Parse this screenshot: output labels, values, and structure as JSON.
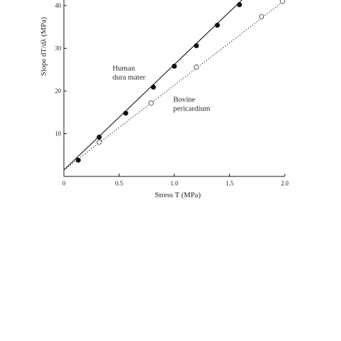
{
  "chart_data": {
    "type": "scatter",
    "xlabel": "Stress T (MPa)",
    "ylabel": "Slope dT/dλ (MPa)",
    "xlim": [
      0,
      2.0
    ],
    "ylim": [
      0,
      40
    ],
    "x_ticks": [
      "0",
      "0.5",
      "1.0",
      "1.5",
      "2.0"
    ],
    "y_ticks": [
      "10",
      "20",
      "30",
      "40"
    ],
    "grid": false,
    "series": [
      {
        "name": "Human dura mater",
        "marker": "filled-circle",
        "line_style": "solid",
        "x": [
          0.13,
          0.32,
          0.56,
          0.81,
          1.0,
          1.2,
          1.39,
          1.59
        ],
        "y": [
          3.8,
          9.2,
          14.8,
          20.9,
          25.8,
          30.6,
          35.4,
          40.2
        ],
        "fit": {
          "x": [
            0,
            1.62
          ],
          "y": [
            1.5,
            41.5
          ]
        }
      },
      {
        "name": "Bovine pericardium",
        "marker": "open-circle",
        "line_style": "dotted",
        "x": [
          0.32,
          0.79,
          1.2,
          1.79,
          1.98
        ],
        "y": [
          8.0,
          17.2,
          25.6,
          37.4,
          41.0
        ],
        "fit": {
          "x": [
            0,
            2.0
          ],
          "y": [
            1.5,
            41.2
          ]
        }
      }
    ],
    "annotations": [
      {
        "text_lines": [
          "Human",
          "dura mater"
        ],
        "x": 0.44,
        "y": 24.8
      },
      {
        "text_lines": [
          "Bovine",
          "pericardium"
        ],
        "x": 0.99,
        "y": 17.5
      }
    ]
  }
}
